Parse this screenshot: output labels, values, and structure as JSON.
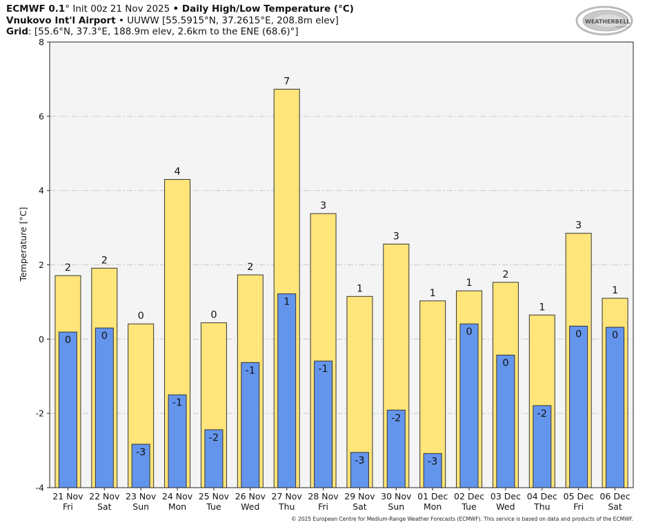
{
  "header": {
    "line1": {
      "model": "ECMWF 0.1",
      "deg": "°",
      "init": " Init 00z 21 Nov 2025 ",
      "bullet": "•",
      "product": " Daily High/Low Temperature (°C)"
    },
    "line2": {
      "station": "Vnukovo Int'l Airport",
      "bullet": " • ",
      "details": "UUWW [55.5915°N, 37.2615°E, 208.8m elev]"
    },
    "line3": {
      "label": "Grid",
      "details": ": [55.6°N, 37.3°E, 188.9m elev, 2.6km to the ENE (68.6)°]"
    }
  },
  "logo": {
    "text_main": "WEATHERBELL",
    "text_sub": "Analytics LLC"
  },
  "footer": "© 2025 European Centre for Medium-Range Weather Forecasts (ECMWF). This service is based on data and products of the ECMWF.",
  "colors": {
    "high": "#FFE57A",
    "low": "#6495ED",
    "plot_bg": "#F4F4F4",
    "grid": "#C8C8C8",
    "edge": "#333333"
  },
  "chart_data": {
    "type": "bar",
    "title": "Daily High/Low Temperature (°C)",
    "xlabel": "",
    "ylabel": "Temperature [°C]",
    "ylim": [
      -4,
      8
    ],
    "yticks": [
      -4,
      -2,
      0,
      2,
      4,
      6,
      8
    ],
    "grid": true,
    "categories": [
      "21 Nov",
      "22 Nov",
      "23 Nov",
      "24 Nov",
      "25 Nov",
      "26 Nov",
      "27 Nov",
      "28 Nov",
      "29 Nov",
      "30 Nov",
      "01 Dec",
      "02 Dec",
      "03 Dec",
      "04 Dec",
      "05 Dec",
      "06 Dec"
    ],
    "weekdays": [
      "Fri",
      "Sat",
      "Sun",
      "Mon",
      "Tue",
      "Wed",
      "Thu",
      "Fri",
      "Sat",
      "Sun",
      "Mon",
      "Tue",
      "Wed",
      "Thu",
      "Fri",
      "Sat"
    ],
    "series": [
      {
        "name": "High",
        "values": [
          1.71,
          1.91,
          0.41,
          4.3,
          0.44,
          1.73,
          6.73,
          3.38,
          1.15,
          2.56,
          1.03,
          1.3,
          1.53,
          0.65,
          2.85,
          1.1
        ],
        "labels": [
          "2",
          "2",
          "0",
          "4",
          "0",
          "2",
          "7",
          "3",
          "1",
          "3",
          "1",
          "1",
          "2",
          "1",
          "3",
          "1"
        ]
      },
      {
        "name": "Low",
        "values": [
          0.19,
          0.3,
          -2.83,
          -1.5,
          -2.44,
          -0.63,
          1.22,
          -0.59,
          -3.05,
          -1.91,
          -3.08,
          0.41,
          -0.43,
          -1.79,
          0.35,
          0.32
        ],
        "labels": [
          "0",
          "0",
          "-3",
          "-1",
          "-2",
          "-1",
          "1",
          "-1",
          "-3",
          "-2",
          "-3",
          "0",
          "0",
          "-2",
          "0",
          "0"
        ]
      }
    ]
  }
}
